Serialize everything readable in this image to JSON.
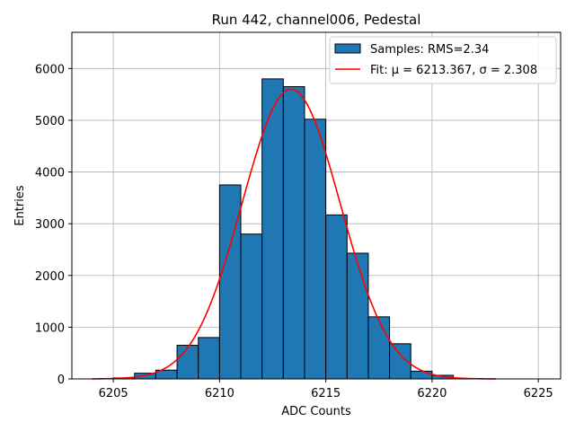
{
  "chart_data": {
    "type": "bar",
    "title": "Run 442, channel006, Pedestal",
    "xlabel": "ADC Counts",
    "ylabel": "Entries",
    "xlim": [
      6203.05,
      6226.05
    ],
    "ylim": [
      0,
      6700
    ],
    "xticks": [
      6205,
      6210,
      6215,
      6220,
      6225
    ],
    "yticks": [
      0,
      1000,
      2000,
      3000,
      4000,
      5000,
      6000
    ],
    "grid": true,
    "legend_position": "top-right",
    "histogram": {
      "name": "Samples: RMS=2.34",
      "color": "#1f77b4",
      "edge_color": "#000000",
      "bin_edges": [
        6204,
        6205,
        6206,
        6207,
        6208,
        6209,
        6210,
        6211,
        6212,
        6213,
        6214,
        6215,
        6216,
        6217,
        6218,
        6219,
        6220,
        6221,
        6222,
        6223
      ],
      "counts": [
        0,
        20,
        110,
        170,
        650,
        800,
        3750,
        2800,
        5800,
        5650,
        5020,
        3170,
        2430,
        1200,
        680,
        150,
        70,
        0,
        0
      ]
    },
    "fit": {
      "name": "Fit: μ = 6213.367, σ = 2.308",
      "color": "#ff0000",
      "mu": 6213.367,
      "sigma": 2.308,
      "amplitude": 5600,
      "x_range": [
        6204,
        6223
      ]
    }
  }
}
